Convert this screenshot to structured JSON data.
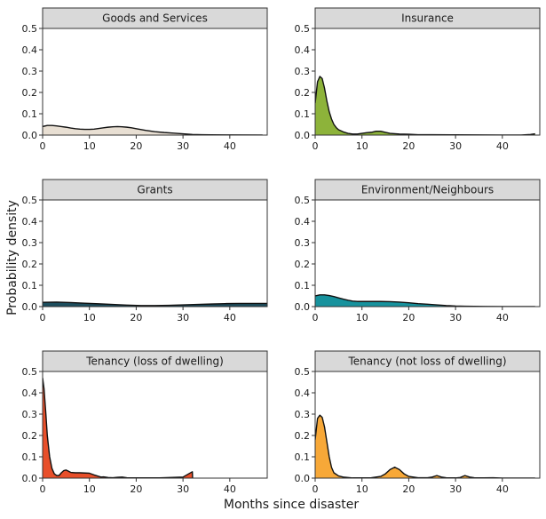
{
  "chart_data": {
    "type": "area",
    "xlabel": "Months since disaster",
    "ylabel": "Probability density",
    "xlim": [
      0,
      48
    ],
    "ylim": [
      0,
      0.5
    ],
    "x_ticks": [
      0,
      10,
      20,
      30,
      40
    ],
    "y_ticks": [
      0.0,
      0.1,
      0.2,
      0.3,
      0.4,
      0.5
    ],
    "x_tick_labels": [
      "0",
      "10",
      "20",
      "30",
      "40"
    ],
    "y_tick_labels": [
      "0.0",
      "0.1",
      "0.2",
      "0.3",
      "0.4",
      "0.5"
    ],
    "panels": [
      {
        "title": "Goods and Services",
        "color": "#e8dfd3",
        "points": [
          [
            0,
            0.04
          ],
          [
            1,
            0.045
          ],
          [
            2,
            0.045
          ],
          [
            3,
            0.043
          ],
          [
            4,
            0.04
          ],
          [
            5,
            0.037
          ],
          [
            6,
            0.033
          ],
          [
            7,
            0.03
          ],
          [
            8,
            0.028
          ],
          [
            9,
            0.027
          ],
          [
            10,
            0.027
          ],
          [
            11,
            0.028
          ],
          [
            12,
            0.031
          ],
          [
            13,
            0.034
          ],
          [
            14,
            0.037
          ],
          [
            15,
            0.039
          ],
          [
            16,
            0.04
          ],
          [
            17,
            0.039
          ],
          [
            18,
            0.037
          ],
          [
            19,
            0.034
          ],
          [
            20,
            0.03
          ],
          [
            22,
            0.022
          ],
          [
            24,
            0.016
          ],
          [
            26,
            0.012
          ],
          [
            28,
            0.009
          ],
          [
            30,
            0.006
          ],
          [
            32,
            0.003
          ],
          [
            34,
            0.002
          ],
          [
            36,
            0.001
          ],
          [
            40,
            0.0005
          ],
          [
            47,
            0.0
          ]
        ]
      },
      {
        "title": "Insurance",
        "color": "#8db33a",
        "points": [
          [
            0,
            0.15
          ],
          [
            0.5,
            0.25
          ],
          [
            1,
            0.275
          ],
          [
            1.5,
            0.265
          ],
          [
            2,
            0.22
          ],
          [
            2.5,
            0.16
          ],
          [
            3,
            0.11
          ],
          [
            3.5,
            0.075
          ],
          [
            4,
            0.05
          ],
          [
            4.5,
            0.035
          ],
          [
            5,
            0.025
          ],
          [
            6,
            0.015
          ],
          [
            7,
            0.008
          ],
          [
            8,
            0.005
          ],
          [
            9,
            0.005
          ],
          [
            10,
            0.008
          ],
          [
            11,
            0.011
          ],
          [
            12,
            0.013
          ],
          [
            13,
            0.018
          ],
          [
            14,
            0.018
          ],
          [
            15,
            0.013
          ],
          [
            16,
            0.008
          ],
          [
            18,
            0.005
          ],
          [
            20,
            0.004
          ],
          [
            22,
            0.002
          ],
          [
            25,
            0.002
          ],
          [
            30,
            0.001
          ],
          [
            35,
            0.0005
          ],
          [
            40,
            0.0
          ],
          [
            44,
            0.0
          ],
          [
            46,
            0.003
          ],
          [
            47,
            0.006
          ]
        ]
      },
      {
        "title": "Grants",
        "color": "#1d4e5e",
        "points": [
          [
            0,
            0.02
          ],
          [
            3,
            0.021
          ],
          [
            6,
            0.019
          ],
          [
            9,
            0.016
          ],
          [
            12,
            0.013
          ],
          [
            15,
            0.01
          ],
          [
            18,
            0.007
          ],
          [
            21,
            0.005
          ],
          [
            24,
            0.005
          ],
          [
            27,
            0.006
          ],
          [
            30,
            0.008
          ],
          [
            33,
            0.01
          ],
          [
            36,
            0.012
          ],
          [
            39,
            0.014
          ],
          [
            42,
            0.015
          ],
          [
            45,
            0.015
          ],
          [
            48,
            0.015
          ]
        ]
      },
      {
        "title": "Environment/Neighbours",
        "color": "#17929d",
        "points": [
          [
            0,
            0.05
          ],
          [
            1,
            0.055
          ],
          [
            2,
            0.055
          ],
          [
            3,
            0.052
          ],
          [
            4,
            0.047
          ],
          [
            5,
            0.041
          ],
          [
            6,
            0.035
          ],
          [
            7,
            0.03
          ],
          [
            8,
            0.026
          ],
          [
            9,
            0.024
          ],
          [
            10,
            0.024
          ],
          [
            12,
            0.024
          ],
          [
            14,
            0.024
          ],
          [
            16,
            0.023
          ],
          [
            18,
            0.021
          ],
          [
            20,
            0.018
          ],
          [
            22,
            0.014
          ],
          [
            24,
            0.011
          ],
          [
            26,
            0.008
          ],
          [
            28,
            0.005
          ],
          [
            30,
            0.003
          ],
          [
            32,
            0.002
          ],
          [
            34,
            0.001
          ],
          [
            36,
            0.0005
          ],
          [
            40,
            0.0
          ],
          [
            47,
            0.0
          ]
        ]
      },
      {
        "title": "Tenancy (loss of dwelling)",
        "color": "#e84f2a",
        "points": [
          [
            0,
            0.47
          ],
          [
            0.3,
            0.42
          ],
          [
            0.7,
            0.3
          ],
          [
            1,
            0.2
          ],
          [
            1.5,
            0.1
          ],
          [
            2,
            0.045
          ],
          [
            2.5,
            0.02
          ],
          [
            3,
            0.012
          ],
          [
            3.5,
            0.012
          ],
          [
            4,
            0.025
          ],
          [
            4.5,
            0.035
          ],
          [
            5,
            0.038
          ],
          [
            5.5,
            0.033
          ],
          [
            6,
            0.027
          ],
          [
            7,
            0.025
          ],
          [
            8,
            0.025
          ],
          [
            9,
            0.024
          ],
          [
            10,
            0.023
          ],
          [
            11,
            0.015
          ],
          [
            12,
            0.008
          ],
          [
            12.5,
            0.005
          ],
          [
            13,
            0.006
          ],
          [
            14,
            0.003
          ],
          [
            15,
            0.002
          ],
          [
            16,
            0.004
          ],
          [
            17,
            0.005
          ],
          [
            18,
            0.002
          ],
          [
            20,
            0.001
          ],
          [
            25,
            0.001
          ],
          [
            30,
            0.005
          ],
          [
            32,
            0.03
          ],
          [
            32.05,
            0.0
          ]
        ]
      },
      {
        "title": "Tenancy (not loss of dwelling)",
        "color": "#f7a838",
        "points": [
          [
            0,
            0.18
          ],
          [
            0.5,
            0.28
          ],
          [
            1,
            0.295
          ],
          [
            1.5,
            0.285
          ],
          [
            2,
            0.24
          ],
          [
            2.5,
            0.17
          ],
          [
            3,
            0.1
          ],
          [
            3.5,
            0.05
          ],
          [
            4,
            0.025
          ],
          [
            5,
            0.01
          ],
          [
            6,
            0.005
          ],
          [
            7,
            0.003
          ],
          [
            8,
            0.001
          ],
          [
            10,
            0.001
          ],
          [
            12,
            0.002
          ],
          [
            14,
            0.008
          ],
          [
            15,
            0.02
          ],
          [
            16,
            0.04
          ],
          [
            17,
            0.051
          ],
          [
            18,
            0.04
          ],
          [
            19,
            0.02
          ],
          [
            20,
            0.008
          ],
          [
            22,
            0.002
          ],
          [
            24,
            0.002
          ],
          [
            25,
            0.005
          ],
          [
            26,
            0.012
          ],
          [
            27,
            0.005
          ],
          [
            28,
            0.002
          ],
          [
            30,
            0.001
          ],
          [
            31,
            0.003
          ],
          [
            32,
            0.012
          ],
          [
            33,
            0.005
          ],
          [
            34,
            0.002
          ],
          [
            36,
            0.001
          ],
          [
            38,
            0.002
          ],
          [
            40,
            0.0
          ],
          [
            47,
            0.0
          ]
        ]
      }
    ]
  }
}
